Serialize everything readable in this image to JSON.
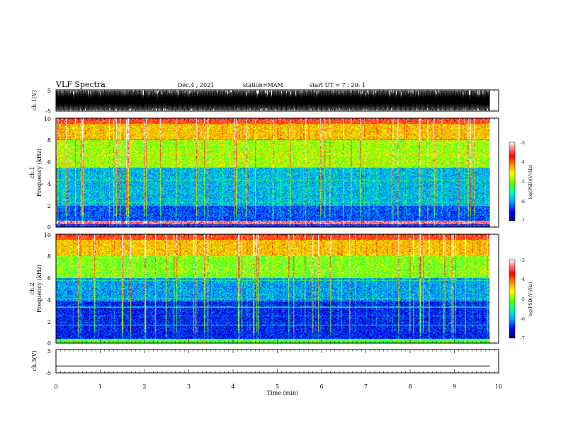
{
  "header": {
    "title": "VLF Spectra",
    "date": "Dec.4 , 2021",
    "station": "station=MAM",
    "start": "start UT = 7 : 20: 1"
  },
  "chart_data": [
    {
      "type": "line",
      "ylabel": "ch.1(V)",
      "ylim": [
        -5,
        5
      ],
      "ytick_labels": [
        "5",
        "-5"
      ],
      "description_of_signal": "dense oscillating waveform spanning full range"
    },
    {
      "type": "heatmap",
      "ylabel_line1": "ch.1",
      "ylabel_line2": "Frequency (kHz)",
      "ylim": [
        0,
        10
      ],
      "ytick_labels": [
        "0",
        "2",
        "4",
        "6",
        "8",
        "10"
      ],
      "colorbar": {
        "label": "log(PSD)(V²/Hz)",
        "range": [
          -7,
          -3
        ],
        "tick_labels": [
          "-3",
          "-4",
          "-5",
          "-6",
          "-7"
        ]
      },
      "bands": [
        {
          "freq_range": [
            0,
            0.3
          ],
          "level": -6.6
        },
        {
          "freq_range": [
            0.3,
            0.6
          ],
          "level": -3.4
        },
        {
          "freq_range": [
            0.6,
            2.0
          ],
          "level": -6.3
        },
        {
          "freq_range": [
            2.0,
            5.5
          ],
          "level": -5.9
        },
        {
          "freq_range": [
            5.5,
            8.0
          ],
          "level": -4.9
        },
        {
          "freq_range": [
            8.0,
            9.5
          ],
          "level": -4.4
        },
        {
          "freq_range": [
            9.5,
            10.0
          ],
          "level": -3.7
        }
      ]
    },
    {
      "type": "heatmap",
      "ylabel_line1": "ch.2",
      "ylabel_line2": "Frequency (kHz)",
      "ylim": [
        0,
        10
      ],
      "ytick_labels": [
        "0",
        "2",
        "4",
        "6",
        "8",
        "10"
      ],
      "colorbar": {
        "label": "log(PSD)(V²/Hz)",
        "range": [
          -7,
          -3
        ],
        "tick_labels": [
          "-3",
          "-4",
          "-5",
          "-6",
          "-7"
        ]
      },
      "bands": [
        {
          "freq_range": [
            0,
            0.4
          ],
          "level": -5.2
        },
        {
          "freq_range": [
            0.4,
            4.0
          ],
          "level": -6.5
        },
        {
          "freq_range": [
            4.0,
            6.0
          ],
          "level": -6.0
        },
        {
          "freq_range": [
            6.0,
            8.0
          ],
          "level": -5.0
        },
        {
          "freq_range": [
            8.0,
            9.5
          ],
          "level": -4.4
        },
        {
          "freq_range": [
            9.5,
            10.0
          ],
          "level": -3.8
        }
      ]
    },
    {
      "type": "line",
      "ylabel": "ch.3(V)",
      "ylim": [
        -5,
        5
      ],
      "ytick_labels": [
        "5",
        "-5"
      ],
      "series": [
        {
          "x": [
            0,
            9.8
          ],
          "values": [
            -2.5,
            -2.5
          ]
        }
      ]
    }
  ],
  "xaxis": {
    "label": "Time (min)",
    "xlim": [
      0,
      10
    ],
    "tick_labels": [
      "0",
      "1",
      "2",
      "3",
      "4",
      "5",
      "6",
      "7",
      "8",
      "9",
      "10"
    ],
    "data_end": 9.8
  },
  "colors": {
    "axis": "#000000",
    "colormap": [
      "#00007a",
      "#0000ff",
      "#00aaff",
      "#00ffaa",
      "#55ff00",
      "#ffff00",
      "#ff8800",
      "#ff0000",
      "#ff8080",
      "#ffffff"
    ]
  }
}
